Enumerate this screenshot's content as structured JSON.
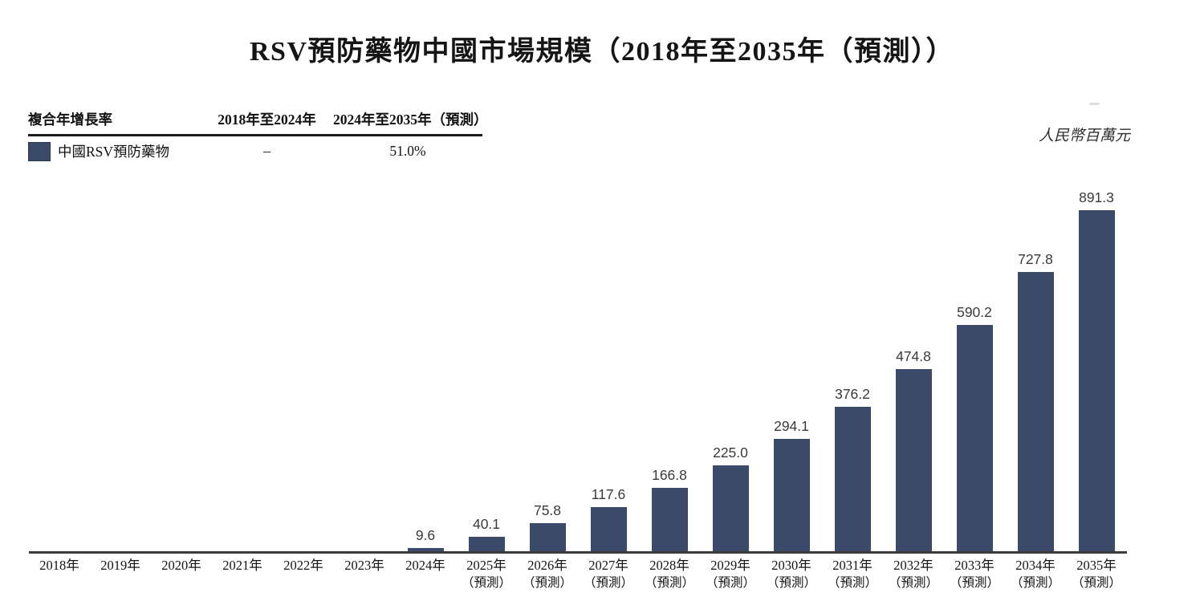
{
  "title": "RSV預防藥物中國市場規模（2018年至2035年（預測））",
  "unit_label": "人民幣百萬元",
  "legend_table": {
    "header": [
      "複合年增長率",
      "2018年至2024年",
      "2024年至2035年（預測）"
    ],
    "row": {
      "swatch_color": "#3b4a68",
      "swatch_border_color": "#2a3750",
      "label": "中國RSV預防藥物",
      "cagr_2018_2024": "–",
      "cagr_2024_2035": "51.0%"
    }
  },
  "chart_data": {
    "type": "bar",
    "title": "RSV預防藥物中國市場規模（2018年至2035年（預測））",
    "ylabel": "人民幣百萬元",
    "xlabel": "",
    "categories": [
      "2018年",
      "2019年",
      "2020年",
      "2021年",
      "2022年",
      "2023年",
      "2024年",
      "2025年",
      "2026年",
      "2027年",
      "2028年",
      "2029年",
      "2030年",
      "2031年",
      "2032年",
      "2033年",
      "2034年",
      "2035年"
    ],
    "x_sublabels": [
      "",
      "",
      "",
      "",
      "",
      "",
      "",
      "（預測）",
      "（預測）",
      "（預測）",
      "（預測）",
      "（預測）",
      "（預測）",
      "（預測）",
      "（預測）",
      "（預測）",
      "（預測）",
      "（預測）"
    ],
    "values": [
      null,
      null,
      null,
      null,
      null,
      null,
      9.6,
      40.1,
      75.8,
      117.6,
      166.8,
      225.0,
      294.1,
      376.2,
      474.8,
      590.2,
      727.8,
      891.3
    ],
    "value_labels": [
      "",
      "",
      "",
      "",
      "",
      "",
      "9.6",
      "40.1",
      "75.8",
      "117.6",
      "166.8",
      "225.0",
      "294.1",
      "376.2",
      "474.8",
      "590.2",
      "727.8",
      "891.3"
    ],
    "bar_color": "#3b4a68",
    "axis_color": "#3c3c3c",
    "y_axis_visible": false,
    "grid": false,
    "legend_position": "top-left"
  }
}
